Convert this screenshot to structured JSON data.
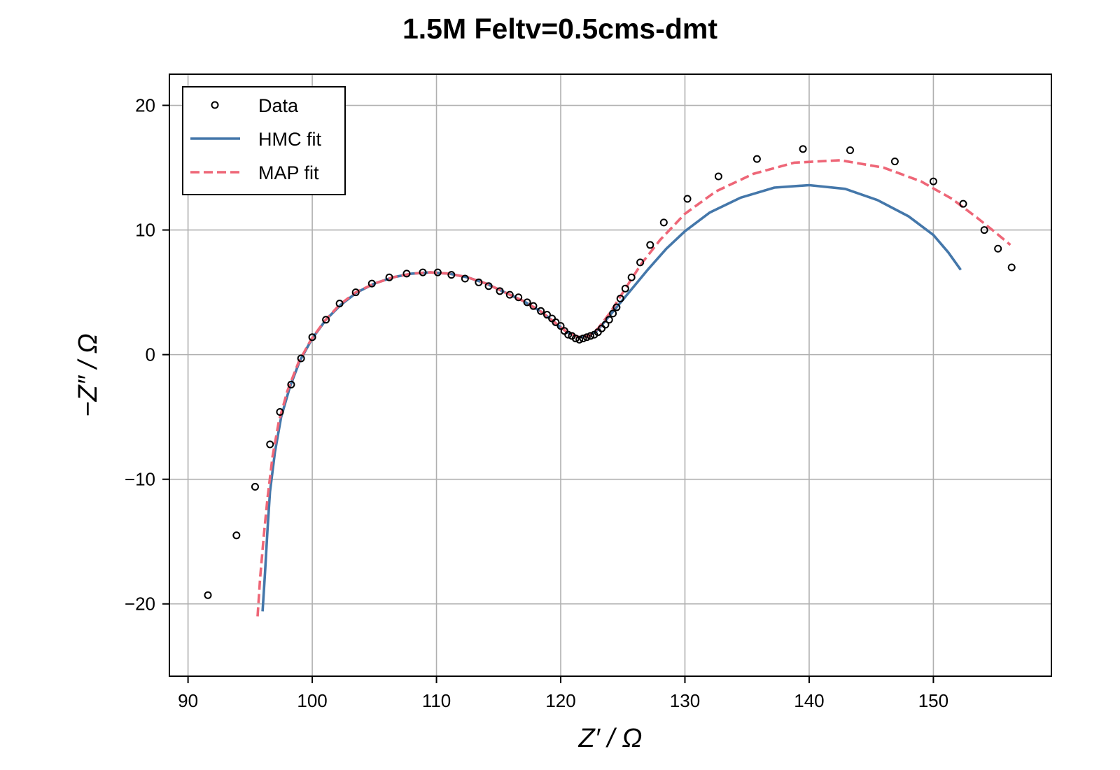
{
  "chart_data": {
    "type": "scatter",
    "title": "1.5M Feltv=0.5cms-dmt",
    "xlabel": "Z′ / Ω",
    "ylabel": "−Z″ / Ω",
    "xlim": [
      88.5,
      159.5
    ],
    "ylim": [
      -25.8,
      22.5
    ],
    "xticks": [
      90,
      100,
      110,
      120,
      130,
      140,
      150
    ],
    "xtick_labels": [
      "90",
      "100",
      "110",
      "120",
      "130",
      "140",
      "150"
    ],
    "yticks": [
      -20,
      -10,
      0,
      10,
      20
    ],
    "ytick_labels": [
      "−20",
      "−10",
      "0",
      "10",
      "20"
    ],
    "grid": true,
    "legend_position": "top-left",
    "series": [
      {
        "name": "Data",
        "kind": "markers",
        "color": "#000000",
        "points": [
          [
            91.6,
            -19.3
          ],
          [
            93.9,
            -14.5
          ],
          [
            95.4,
            -10.6
          ],
          [
            96.6,
            -7.2
          ],
          [
            97.4,
            -4.6
          ],
          [
            98.3,
            -2.4
          ],
          [
            99.1,
            -0.3
          ],
          [
            100.0,
            1.4
          ],
          [
            101.1,
            2.8
          ],
          [
            102.2,
            4.1
          ],
          [
            103.5,
            5.0
          ],
          [
            104.8,
            5.7
          ],
          [
            106.2,
            6.2
          ],
          [
            107.6,
            6.5
          ],
          [
            108.9,
            6.6
          ],
          [
            110.1,
            6.6
          ],
          [
            111.2,
            6.4
          ],
          [
            112.3,
            6.1
          ],
          [
            113.4,
            5.8
          ],
          [
            114.2,
            5.5
          ],
          [
            115.1,
            5.1
          ],
          [
            115.9,
            4.8
          ],
          [
            116.6,
            4.6
          ],
          [
            117.3,
            4.2
          ],
          [
            117.8,
            3.9
          ],
          [
            118.4,
            3.5
          ],
          [
            118.9,
            3.2
          ],
          [
            119.3,
            2.9
          ],
          [
            119.6,
            2.6
          ],
          [
            120.0,
            2.3
          ],
          [
            120.3,
            1.9
          ],
          [
            120.6,
            1.6
          ],
          [
            120.9,
            1.5
          ],
          [
            121.2,
            1.3
          ],
          [
            121.5,
            1.2
          ],
          [
            121.8,
            1.3
          ],
          [
            122.1,
            1.4
          ],
          [
            122.4,
            1.5
          ],
          [
            122.7,
            1.6
          ],
          [
            123.0,
            1.8
          ],
          [
            123.3,
            2.1
          ],
          [
            123.6,
            2.4
          ],
          [
            123.9,
            2.8
          ],
          [
            124.2,
            3.3
          ],
          [
            124.5,
            3.8
          ],
          [
            124.8,
            4.5
          ],
          [
            125.2,
            5.3
          ],
          [
            125.7,
            6.2
          ],
          [
            126.4,
            7.4
          ],
          [
            127.2,
            8.8
          ],
          [
            128.3,
            10.6
          ],
          [
            130.2,
            12.5
          ],
          [
            132.7,
            14.3
          ],
          [
            135.8,
            15.7
          ],
          [
            139.5,
            16.5
          ],
          [
            143.3,
            16.4
          ],
          [
            146.9,
            15.5
          ],
          [
            150.0,
            13.9
          ],
          [
            152.4,
            12.1
          ],
          [
            154.1,
            10.0
          ],
          [
            155.2,
            8.5
          ],
          [
            156.3,
            7.0
          ]
        ]
      },
      {
        "name": "HMC fit",
        "kind": "line",
        "color": "#4477aa",
        "points": [
          [
            96.0,
            -20.6
          ],
          [
            96.2,
            -17.5
          ],
          [
            96.4,
            -14.0
          ],
          [
            96.6,
            -11.0
          ],
          [
            97.0,
            -7.8
          ],
          [
            97.5,
            -5.0
          ],
          [
            98.2,
            -2.6
          ],
          [
            99.0,
            -0.5
          ],
          [
            100.0,
            1.3
          ],
          [
            101.1,
            2.8
          ],
          [
            102.3,
            4.0
          ],
          [
            103.6,
            5.0
          ],
          [
            105.0,
            5.7
          ],
          [
            106.5,
            6.2
          ],
          [
            108.0,
            6.5
          ],
          [
            109.5,
            6.6
          ],
          [
            111.0,
            6.5
          ],
          [
            112.5,
            6.2
          ],
          [
            114.0,
            5.7
          ],
          [
            115.5,
            5.0
          ],
          [
            117.0,
            4.3
          ],
          [
            118.5,
            3.4
          ],
          [
            119.5,
            2.6
          ],
          [
            120.5,
            1.8
          ],
          [
            121.5,
            1.4
          ],
          [
            122.3,
            1.5
          ],
          [
            123.0,
            2.0
          ],
          [
            124.0,
            3.2
          ],
          [
            125.5,
            5.0
          ],
          [
            127.0,
            6.8
          ],
          [
            128.5,
            8.5
          ],
          [
            130.0,
            9.9
          ],
          [
            132.0,
            11.4
          ],
          [
            134.5,
            12.6
          ],
          [
            137.2,
            13.4
          ],
          [
            140.0,
            13.6
          ],
          [
            142.9,
            13.3
          ],
          [
            145.5,
            12.4
          ],
          [
            148.0,
            11.1
          ],
          [
            150.0,
            9.6
          ],
          [
            151.2,
            8.2
          ],
          [
            152.2,
            6.8
          ]
        ]
      },
      {
        "name": "MAP fit",
        "kind": "dashed-line",
        "color": "#ee6677",
        "points": [
          [
            95.6,
            -21.0
          ],
          [
            95.8,
            -18.0
          ],
          [
            96.1,
            -14.5
          ],
          [
            96.4,
            -11.5
          ],
          [
            96.8,
            -8.2
          ],
          [
            97.3,
            -5.4
          ],
          [
            98.0,
            -2.9
          ],
          [
            98.9,
            -0.6
          ],
          [
            99.9,
            1.2
          ],
          [
            101.0,
            2.7
          ],
          [
            102.2,
            4.0
          ],
          [
            103.5,
            5.0
          ],
          [
            105.0,
            5.7
          ],
          [
            106.5,
            6.2
          ],
          [
            108.0,
            6.5
          ],
          [
            109.5,
            6.6
          ],
          [
            111.0,
            6.5
          ],
          [
            112.5,
            6.2
          ],
          [
            114.0,
            5.7
          ],
          [
            115.5,
            5.0
          ],
          [
            117.0,
            4.3
          ],
          [
            118.5,
            3.4
          ],
          [
            119.5,
            2.6
          ],
          [
            120.5,
            1.8
          ],
          [
            121.5,
            1.4
          ],
          [
            122.3,
            1.5
          ],
          [
            123.0,
            2.1
          ],
          [
            124.0,
            3.4
          ],
          [
            125.2,
            5.3
          ],
          [
            126.5,
            7.3
          ],
          [
            128.0,
            9.2
          ],
          [
            130.0,
            11.3
          ],
          [
            132.5,
            13.1
          ],
          [
            135.5,
            14.5
          ],
          [
            138.8,
            15.4
          ],
          [
            142.5,
            15.6
          ],
          [
            146.0,
            15.0
          ],
          [
            149.0,
            13.9
          ],
          [
            151.5,
            12.5
          ],
          [
            153.5,
            11.0
          ],
          [
            155.0,
            9.8
          ],
          [
            156.2,
            8.8
          ]
        ]
      }
    ]
  }
}
